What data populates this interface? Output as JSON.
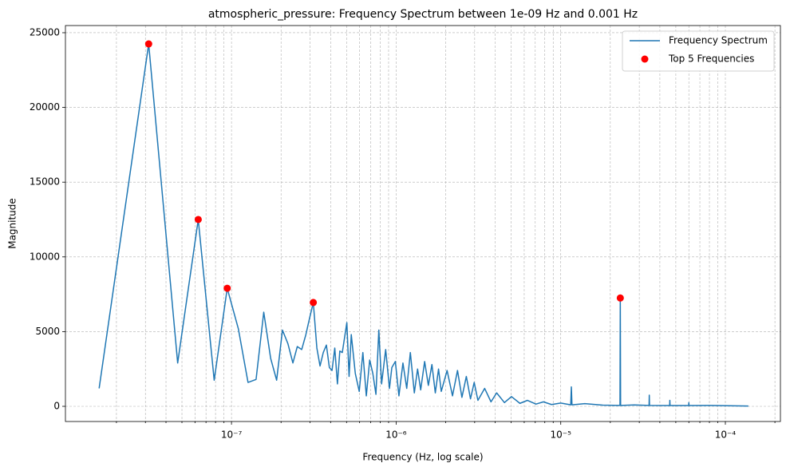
{
  "chart_data": {
    "type": "line",
    "title": "atmospheric_pressure: Frequency Spectrum between 1e-09 Hz and 0.001 Hz",
    "x_label": "Frequency (Hz, log scale)",
    "y_label": "Magnitude",
    "x_scale": "log",
    "xlim": [
      9.8e-09,
      0.000216
    ],
    "ylim": [
      -1015,
      25480
    ],
    "xticks": [
      {
        "value": 1e-07,
        "label": "10⁻⁷"
      },
      {
        "value": 1e-06,
        "label": "10⁻⁶"
      },
      {
        "value": 1e-05,
        "label": "10⁻⁵"
      },
      {
        "value": 0.0001,
        "label": "10⁻⁴"
      }
    ],
    "xminorticks": [
      2e-08,
      3e-08,
      4e-08,
      5e-08,
      6e-08,
      7e-08,
      8e-08,
      9e-08,
      2e-07,
      3e-07,
      4e-07,
      5e-07,
      6e-07,
      7e-07,
      8e-07,
      9e-07,
      2e-06,
      3e-06,
      4e-06,
      5e-06,
      6e-06,
      7e-06,
      8e-06,
      9e-06,
      2e-05,
      3e-05,
      4e-05,
      5e-05,
      6e-05,
      7e-05,
      8e-05,
      9e-05,
      0.0002
    ],
    "yticks": [
      0,
      5000,
      10000,
      15000,
      20000,
      25000
    ],
    "grid": true,
    "legend": "upper right",
    "series": [
      {
        "name": "Frequency Spectrum",
        "type": "line",
        "color": "#1f77b4",
        "x": [
          1.57e-08,
          3.14e-08,
          4.71e-08,
          6.28e-08,
          7.85e-08,
          9.42e-08,
          1.1e-07,
          1.26e-07,
          1.41e-07,
          1.57e-07,
          1.73e-07,
          1.88e-07,
          2.04e-07,
          2.2e-07,
          2.36e-07,
          2.51e-07,
          2.67e-07,
          2.83e-07,
          2.98e-07,
          3.14e-07,
          3.3e-07,
          3.45e-07,
          3.61e-07,
          3.77e-07,
          3.93e-07,
          4.08e-07,
          4.24e-07,
          4.4e-07,
          4.55e-07,
          4.71e-07,
          5.02e-07,
          5.18e-07,
          5.34e-07,
          5.65e-07,
          5.97e-07,
          6.28e-07,
          6.59e-07,
          6.91e-07,
          7.22e-07,
          7.54e-07,
          7.85e-07,
          8.16e-07,
          8.64e-07,
          9.11e-07,
          9.42e-07,
          9.89e-07,
          1.04e-06,
          1.1e-06,
          1.16e-06,
          1.22e-06,
          1.29e-06,
          1.35e-06,
          1.41e-06,
          1.49e-06,
          1.57e-06,
          1.65e-06,
          1.73e-06,
          1.81e-06,
          1.88e-06,
          2.04e-06,
          2.2e-06,
          2.36e-06,
          2.51e-06,
          2.67e-06,
          2.83e-06,
          2.98e-06,
          3.14e-06,
          3.45e-06,
          3.77e-06,
          4.08e-06,
          4.55e-06,
          5.02e-06,
          5.65e-06,
          6.28e-06,
          7.07e-06,
          7.85e-06,
          8.79e-06,
          1e-05,
          1.15e-05,
          1.16e-05,
          1.17e-05,
          1.4e-05,
          1.8e-05,
          2.29e-05,
          2.3e-05,
          2.31e-05,
          2.8e-05,
          3.44e-05,
          3.45e-05,
          3.46e-05,
          4.59e-05,
          4.6e-05,
          4.61e-05,
          5.99e-05,
          6e-05,
          6.01e-05,
          8e-05,
          0.000138
        ],
        "values": [
          1200,
          24250,
          2900,
          12500,
          1750,
          7900,
          5200,
          1600,
          1800,
          6300,
          3200,
          1750,
          5100,
          4200,
          2900,
          4000,
          3800,
          4800,
          5900,
          6950,
          3900,
          2700,
          3600,
          4100,
          2600,
          2400,
          3900,
          1500,
          3700,
          3600,
          5600,
          2000,
          4800,
          2200,
          1000,
          3600,
          700,
          3100,
          2200,
          800,
          5100,
          1500,
          3800,
          1200,
          2600,
          3000,
          700,
          2900,
          1200,
          3600,
          900,
          2500,
          1100,
          3000,
          1400,
          2800,
          900,
          2500,
          1000,
          2400,
          700,
          2400,
          600,
          2000,
          500,
          1600,
          400,
          1200,
          300,
          900,
          250,
          650,
          200,
          400,
          150,
          300,
          120,
          220,
          100,
          1300,
          100,
          180,
          80,
          60,
          7250,
          60,
          90,
          60,
          750,
          60,
          50,
          400,
          50,
          50,
          250,
          50,
          60,
          20
        ]
      },
      {
        "name": "Top 5 Frequencies",
        "type": "scatter",
        "color": "#ff0000",
        "x": [
          3.14e-08,
          6.28e-08,
          9.42e-08,
          3.14e-07,
          2.3e-05
        ],
        "values": [
          24250,
          12500,
          7900,
          6950,
          7250
        ]
      }
    ]
  }
}
